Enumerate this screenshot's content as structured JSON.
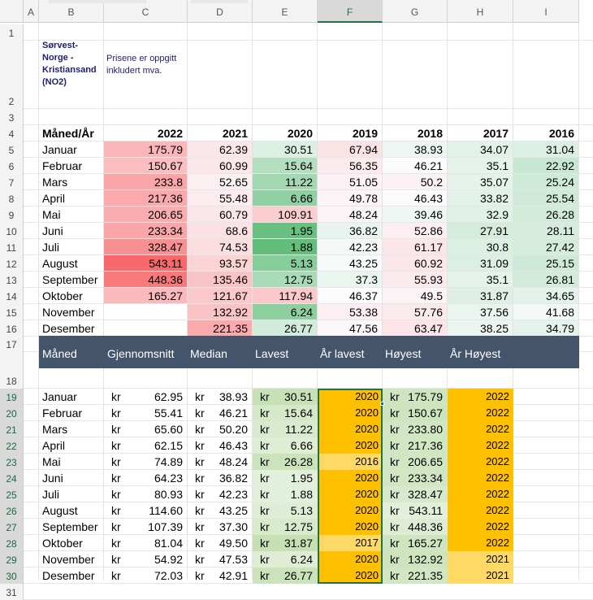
{
  "column_headers": [
    "A",
    "B",
    "C",
    "D",
    "E",
    "F",
    "G",
    "H",
    "I"
  ],
  "row_numbers": [
    1,
    2,
    3,
    4,
    5,
    6,
    7,
    8,
    9,
    10,
    11,
    12,
    13,
    14,
    15,
    16,
    17,
    18,
    19,
    20,
    21,
    22,
    23,
    24,
    25,
    26,
    27,
    28,
    29,
    30,
    31
  ],
  "title": {
    "region": "Sørvest-Norge - Kristiansand (NO2)",
    "region_lines": [
      "Sørvest-",
      "Norge -",
      "Kristiansand",
      "(NO2)"
    ],
    "note_lines": [
      "Prisene er oppgitt",
      "inkludert mva."
    ]
  },
  "table1": {
    "header_label": "Måned/År",
    "years": [
      "2022",
      "2021",
      "2020",
      "2019",
      "2018",
      "2017",
      "2016"
    ],
    "rows": [
      {
        "month": "Januar",
        "values": [
          "175.79",
          "62.39",
          "30.51",
          "67.94",
          "38.93",
          "34.07",
          "31.04"
        ]
      },
      {
        "month": "Februar",
        "values": [
          "150.67",
          "60.99",
          "15.64",
          "56.35",
          "46.21",
          "35.1",
          "22.92"
        ]
      },
      {
        "month": "Mars",
        "values": [
          "233.8",
          "52.65",
          "11.22",
          "51.05",
          "50.2",
          "35.07",
          "25.24"
        ]
      },
      {
        "month": "April",
        "values": [
          "217.36",
          "55.48",
          "6.66",
          "49.78",
          "46.43",
          "33.82",
          "25.54"
        ]
      },
      {
        "month": "Mai",
        "values": [
          "206.65",
          "60.79",
          "109.91",
          "48.24",
          "39.46",
          "32.9",
          "26.28"
        ]
      },
      {
        "month": "Juni",
        "values": [
          "233.34",
          "68.6",
          "1.95",
          "36.82",
          "52.86",
          "27.91",
          "28.11"
        ]
      },
      {
        "month": "Juli",
        "values": [
          "328.47",
          "74.53",
          "1.88",
          "42.23",
          "61.17",
          "30.8",
          "27.42"
        ]
      },
      {
        "month": "August",
        "values": [
          "543.11",
          "93.57",
          "5.13",
          "43.25",
          "60.92",
          "31.09",
          "25.15"
        ]
      },
      {
        "month": "September",
        "values": [
          "448.36",
          "135.46",
          "12.75",
          "37.3",
          "55.93",
          "35.1",
          "26.81"
        ]
      },
      {
        "month": "Oktober",
        "values": [
          "165.27",
          "121.67",
          "117.94",
          "46.37",
          "49.5",
          "31.87",
          "34.65"
        ]
      },
      {
        "month": "November",
        "values": [
          "",
          "132.92",
          "6.24",
          "53.38",
          "57.76",
          "37.56",
          "41.68"
        ]
      },
      {
        "month": "Desember",
        "values": [
          "",
          "221.35",
          "26.77",
          "47.56",
          "63.47",
          "38.25",
          "34.79"
        ]
      }
    ]
  },
  "table2": {
    "headers": [
      "Måned",
      "Gjennomsnitt",
      "Median",
      "Lavest",
      "År lavest",
      "Høyest",
      "År Høyest"
    ],
    "currency": "kr",
    "rows": [
      {
        "month": "Januar",
        "avg": "62.95",
        "median": "38.93",
        "low": "30.51",
        "low_year": "2020",
        "high": "175.79",
        "high_year": "2022"
      },
      {
        "month": "Februar",
        "avg": "55.41",
        "median": "46.21",
        "low": "15.64",
        "low_year": "2020",
        "high": "150.67",
        "high_year": "2022"
      },
      {
        "month": "Mars",
        "avg": "65.60",
        "median": "50.20",
        "low": "11.22",
        "low_year": "2020",
        "high": "233.80",
        "high_year": "2022"
      },
      {
        "month": "April",
        "avg": "62.15",
        "median": "46.43",
        "low": "6.66",
        "low_year": "2020",
        "high": "217.36",
        "high_year": "2022"
      },
      {
        "month": "Mai",
        "avg": "74.89",
        "median": "48.24",
        "low": "26.28",
        "low_year": "2016",
        "high": "206.65",
        "high_year": "2022"
      },
      {
        "month": "Juni",
        "avg": "64.23",
        "median": "36.82",
        "low": "1.95",
        "low_year": "2020",
        "high": "233.34",
        "high_year": "2022"
      },
      {
        "month": "Juli",
        "avg": "80.93",
        "median": "42.23",
        "low": "1.88",
        "low_year": "2020",
        "high": "328.47",
        "high_year": "2022"
      },
      {
        "month": "August",
        "avg": "114.60",
        "median": "43.25",
        "low": "5.13",
        "low_year": "2020",
        "high": "543.11",
        "high_year": "2022"
      },
      {
        "month": "September",
        "avg": "107.39",
        "median": "37.30",
        "low": "12.75",
        "low_year": "2020",
        "high": "448.36",
        "high_year": "2022"
      },
      {
        "month": "Oktober",
        "avg": "81.04",
        "median": "49.50",
        "low": "31.87",
        "low_year": "2017",
        "high": "165.27",
        "high_year": "2022"
      },
      {
        "month": "November",
        "avg": "54.92",
        "median": "47.53",
        "low": "6.24",
        "low_year": "2020",
        "high": "132.92",
        "high_year": "2021"
      },
      {
        "month": "Desember",
        "avg": "72.03",
        "median": "42.91",
        "low": "26.77",
        "low_year": "2020",
        "high": "221.35",
        "high_year": "2021"
      }
    ]
  },
  "colors": {
    "header_bar": "#44546a",
    "year_highlight": "#ffc000",
    "year_highlight_light": "#ffd966",
    "selection_border": "#217346",
    "gridline": "#e2e2e2"
  }
}
